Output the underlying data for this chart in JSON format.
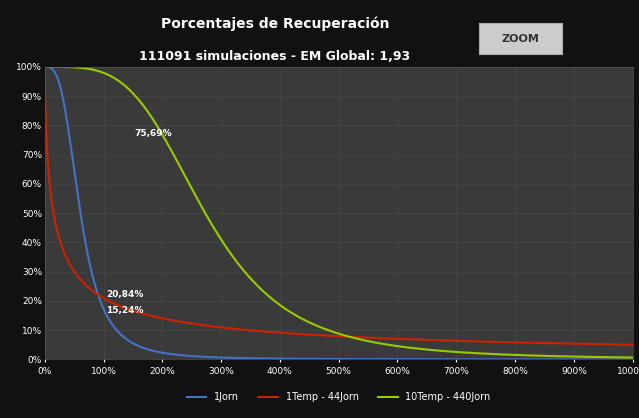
{
  "title_line1": "Porcentajes de Recuperación",
  "title_line2": "111091 simulaciones - EM Global: 1,93",
  "bg_color": "#111111",
  "plot_bg_color": "#3a3a3a",
  "grid_color": "#555555",
  "curve_blue_label": "1Jorn",
  "curve_red_label": "1Temp - 44Jorn",
  "curve_green_label": "10Temp - 440Jorn",
  "curve_blue_color": "#4472c4",
  "curve_red_color": "#cc2200",
  "curve_green_color": "#99cc00",
  "annotation_75": "75,69%",
  "annotation_20": "20,84%",
  "annotation_15": "15,24%",
  "zoom_btn_text": "ZOOM",
  "blue_decay": 18.5,
  "red_decay": 62.0,
  "green_decay": 160.0
}
